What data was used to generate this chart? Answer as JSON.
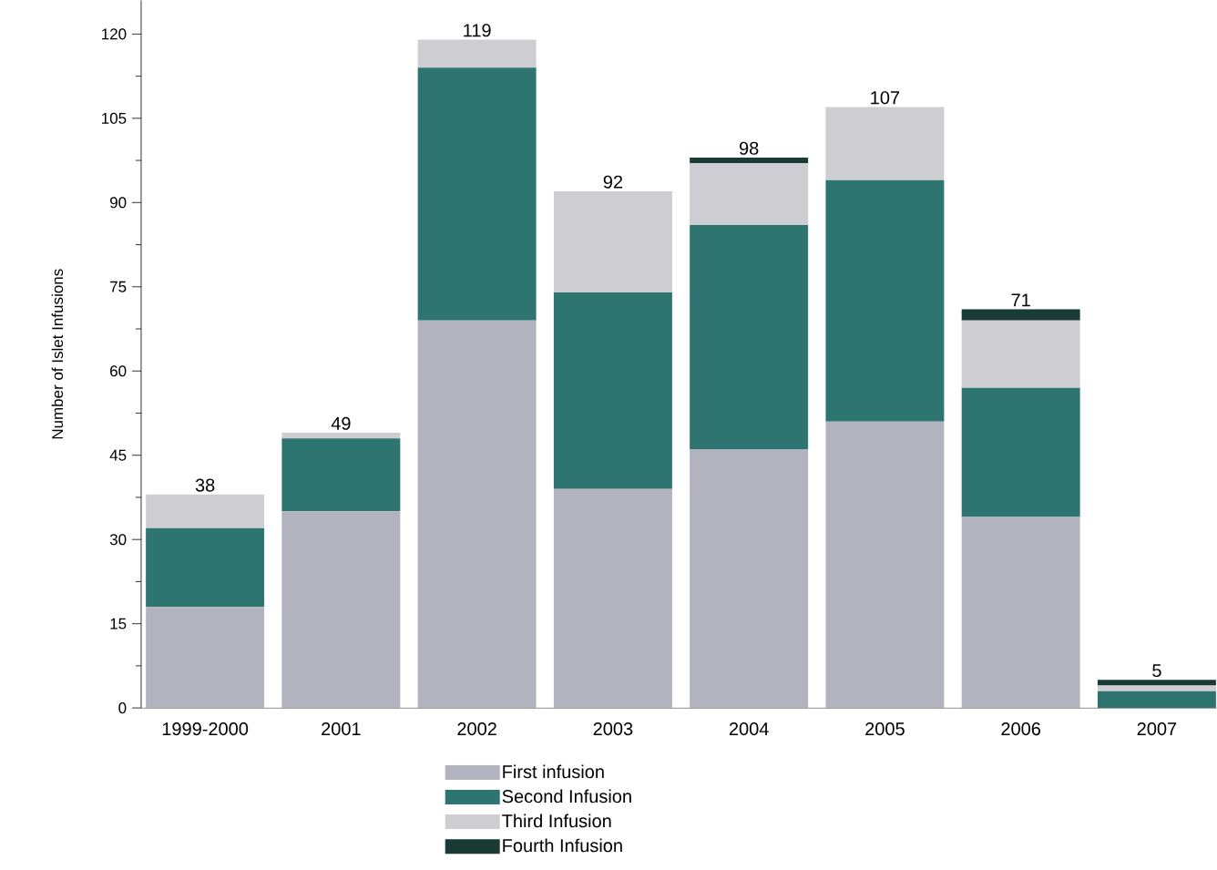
{
  "chart_data": {
    "type": "bar",
    "stacked": true,
    "ylabel": "Number of Islet Infusions",
    "categories": [
      "1999-2000",
      "2001",
      "2002",
      "2003",
      "2004",
      "2005",
      "2006",
      "2007"
    ],
    "series": [
      {
        "name": "First infusion",
        "color": "#b3b3bf",
        "values": [
          18,
          35,
          69,
          39,
          46,
          51,
          34,
          0
        ]
      },
      {
        "name": "Second Infusion",
        "color": "#2e7470",
        "values": [
          14,
          13,
          45,
          35,
          40,
          43,
          23,
          3
        ]
      },
      {
        "name": "Third Infusion",
        "color": "#cdcdd2",
        "values": [
          6,
          1,
          5,
          18,
          11,
          13,
          12,
          1
        ]
      },
      {
        "name": "Fourth Infusion",
        "color": "#1a3a36",
        "values": [
          0,
          0,
          0,
          0,
          1,
          0,
          2,
          1
        ]
      }
    ],
    "totals": [
      "38",
      "49",
      "119",
      "92",
      "98",
      "107",
      "71",
      "5"
    ],
    "ylim": [
      0,
      126
    ],
    "yticks": [
      0,
      15,
      30,
      45,
      60,
      75,
      90,
      105,
      120
    ],
    "grid": false,
    "legend": "bottom"
  }
}
